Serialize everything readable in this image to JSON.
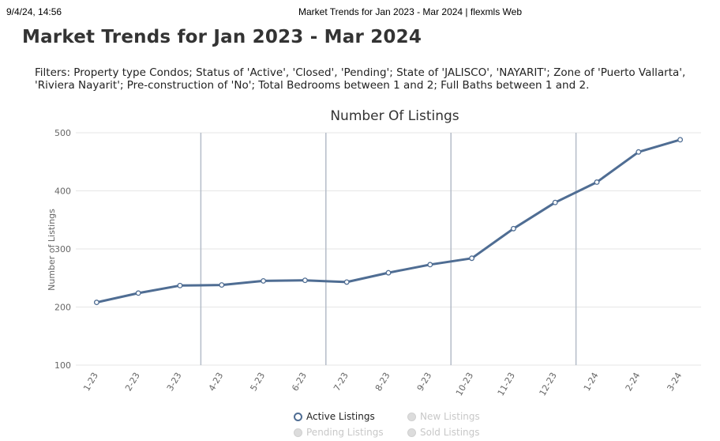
{
  "print_header": {
    "datetime": "9/4/24, 14:56",
    "title": "Market Trends for Jan 2023 - Mar 2024 | flexmls Web"
  },
  "page_title": "Market Trends for Jan 2023 - Mar 2024",
  "filters_text": "Filters: Property type Condos; Status of 'Active', 'Closed', 'Pending'; State of 'JALISCO', 'NAYARIT'; Zone of 'Puerto Vallarta', 'Riviera Nayarit'; Pre-construction of 'No'; Total Bedrooms between 1 and 2; Full Baths between 1 and 2.",
  "chart_data": {
    "type": "line",
    "title": "Number Of Listings",
    "ylabel": "Number of Listings",
    "xlabel": "",
    "ylim": [
      100,
      500
    ],
    "yticks": [
      "100",
      "200",
      "300",
      "400",
      "500"
    ],
    "categories": [
      "1-23",
      "2-23",
      "3-23",
      "4-23",
      "5-23",
      "6-23",
      "7-23",
      "8-23",
      "9-23",
      "10-23",
      "11-23",
      "12-23",
      "1-24",
      "2-24",
      "3-24"
    ],
    "quarter_dividers_after": [
      "3-23",
      "6-23",
      "9-23",
      "12-23"
    ],
    "grid": true,
    "series": [
      {
        "name": "Active Listings",
        "color": "#4f6d93",
        "values": [
          208,
          224,
          237,
          238,
          245,
          246,
          243,
          259,
          273,
          284,
          335,
          380,
          415,
          467,
          488
        ]
      }
    ],
    "legend": {
      "placement": "bottom",
      "items": [
        {
          "label": "Active Listings",
          "active": true
        },
        {
          "label": "New Listings",
          "active": false
        },
        {
          "label": "Pending Listings",
          "active": false
        },
        {
          "label": "Sold Listings",
          "active": false
        }
      ]
    }
  }
}
